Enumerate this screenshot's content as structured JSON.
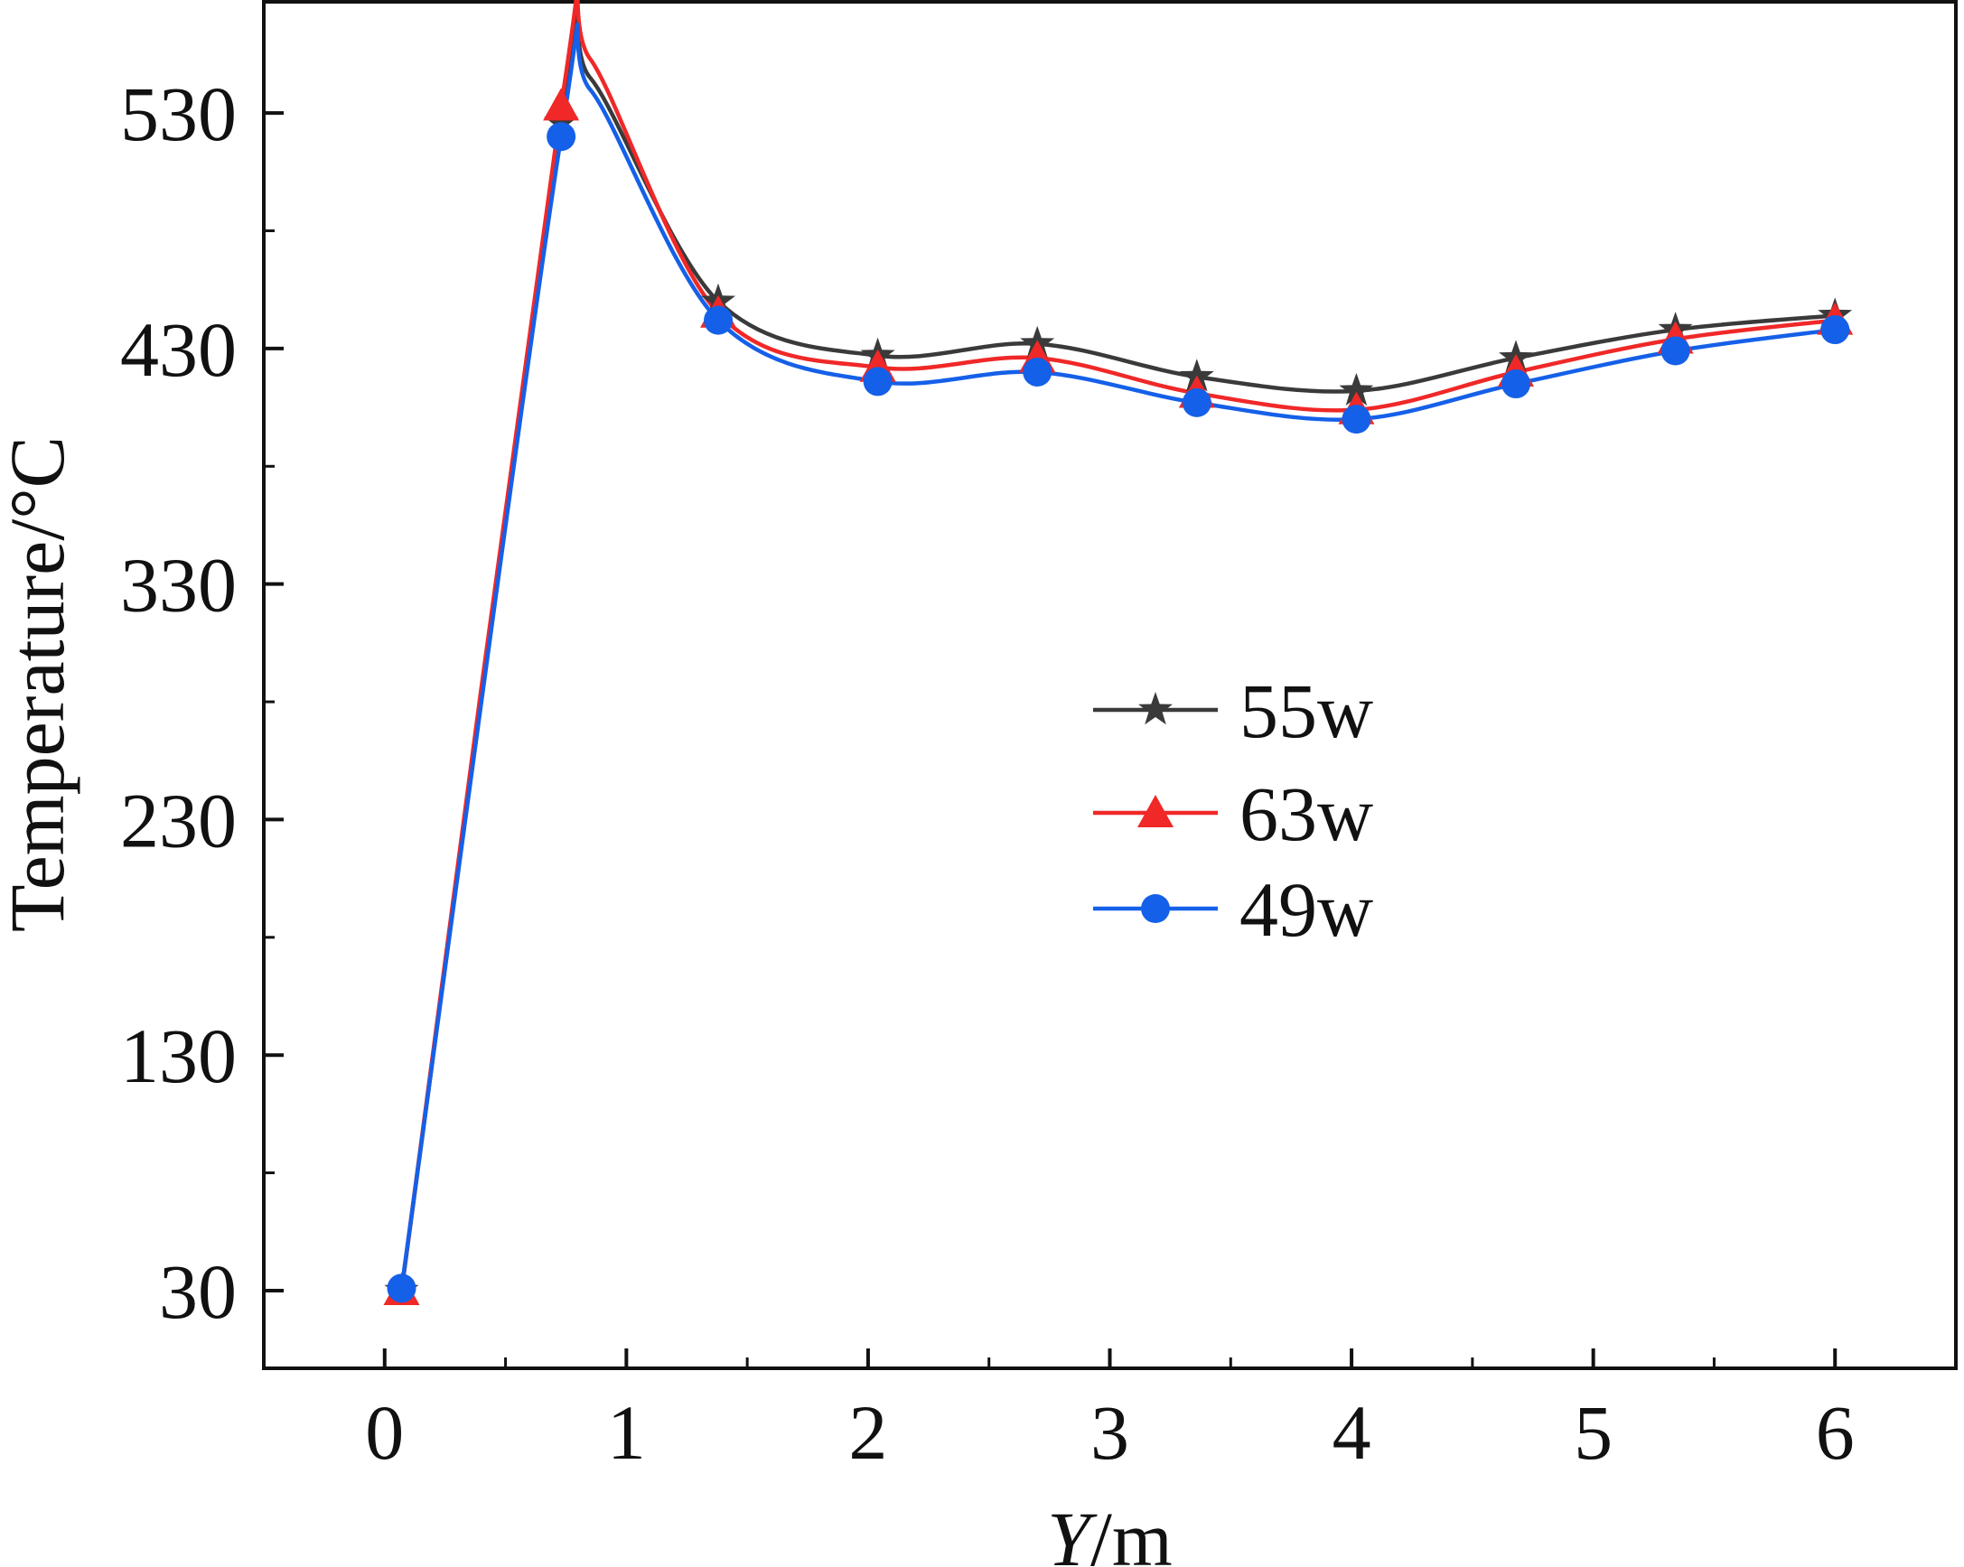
{
  "chart_data": {
    "type": "line",
    "xlabel_italic": "Y",
    "xlabel_rest": "/m",
    "ylabel": "Temperature/°C",
    "xlim": [
      -0.5,
      6.5
    ],
    "ylim": [
      -3,
      578
    ],
    "x_ticks": [
      0,
      1,
      2,
      3,
      4,
      5,
      6
    ],
    "x_tick_labels": [
      "0",
      "1",
      "2",
      "3",
      "4",
      "5",
      "6"
    ],
    "y_ticks": [
      30,
      130,
      230,
      330,
      430,
      530
    ],
    "y_tick_labels": [
      "30",
      "130",
      "230",
      "330",
      "430",
      "530"
    ],
    "legend_position": "center-right",
    "x": [
      0.07,
      0.73,
      1.38,
      2.04,
      2.7,
      3.36,
      4.02,
      4.68,
      5.34,
      6.0
    ],
    "series": [
      {
        "name": "55w",
        "color": "#3a3a3a",
        "marker": "star",
        "values": [
          30,
          526,
          450,
          427,
          432,
          418,
          412,
          426,
          438,
          444
        ],
        "peak": [
          0.85,
          545
        ]
      },
      {
        "name": "63w",
        "color": "#f02828",
        "marker": "triangle",
        "values": [
          30,
          533,
          445,
          422,
          426,
          411,
          404,
          420,
          434,
          442
        ],
        "peak": [
          0.85,
          553
        ]
      },
      {
        "name": "49w",
        "color": "#1560e8",
        "marker": "circle",
        "values": [
          31,
          520,
          442,
          416,
          420,
          407,
          400,
          415,
          429,
          438
        ],
        "peak": [
          0.85,
          540
        ]
      }
    ]
  }
}
